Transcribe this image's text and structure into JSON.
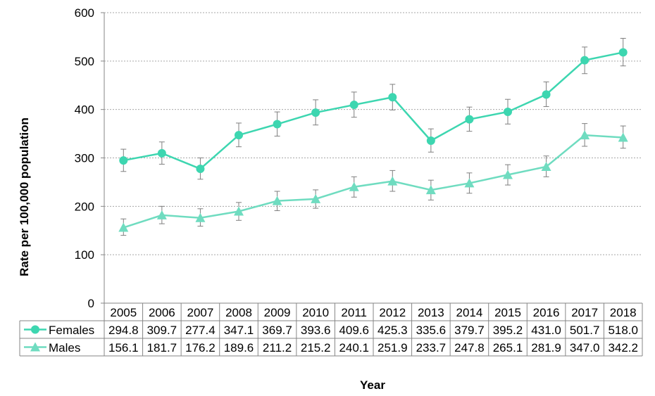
{
  "chart_data": {
    "type": "line",
    "xlabel": "Year",
    "ylabel": "Rate per 100,000 population",
    "ylim": [
      0,
      600
    ],
    "y_ticks": [
      "0",
      "100",
      "200",
      "300",
      "400",
      "500",
      "600"
    ],
    "grid": true,
    "legend_placement": "bottom data table",
    "categories": [
      "2005",
      "2006",
      "2007",
      "2008",
      "2009",
      "2010",
      "2011",
      "2012",
      "2013",
      "2014",
      "2015",
      "2016",
      "2017",
      "2018"
    ],
    "series": [
      {
        "name": "Females",
        "marker": "circle",
        "color": "#3dd6b0",
        "values": [
          294.8,
          309.7,
          277.4,
          347.1,
          369.7,
          393.6,
          409.6,
          425.3,
          335.6,
          379.7,
          395.2,
          431.0,
          501.7,
          518.0
        ],
        "labels": [
          "294.8",
          "309.7",
          "277.4",
          "347.1",
          "369.7",
          "393.6",
          "409.6",
          "425.3",
          "335.6",
          "379.7",
          "395.2",
          "431.0",
          "501.7",
          "518.0"
        ],
        "error_low": [
          272,
          287,
          256,
          323,
          345,
          368,
          384,
          399,
          312,
          355,
          370,
          406,
          474,
          490
        ],
        "error_high": [
          318,
          333,
          300,
          372,
          395,
          420,
          436,
          452,
          360,
          405,
          421,
          457,
          529,
          547
        ]
      },
      {
        "name": "Males",
        "marker": "triangle",
        "color": "#6fdcc0",
        "values": [
          156.1,
          181.7,
          176.2,
          189.6,
          211.2,
          215.2,
          240.1,
          251.9,
          233.7,
          247.8,
          265.1,
          281.9,
          347.0,
          342.2
        ],
        "labels": [
          "156.1",
          "181.7",
          "176.2",
          "189.6",
          "211.2",
          "215.2",
          "240.1",
          "251.9",
          "233.7",
          "247.8",
          "265.1",
          "281.9",
          "347.0",
          "342.2"
        ],
        "error_low": [
          140,
          164,
          159,
          171,
          191,
          196,
          219,
          231,
          213,
          227,
          244,
          261,
          324,
          320
        ],
        "error_high": [
          174,
          200,
          195,
          208,
          231,
          234,
          261,
          274,
          254,
          269,
          286,
          304,
          371,
          366
        ]
      }
    ]
  }
}
